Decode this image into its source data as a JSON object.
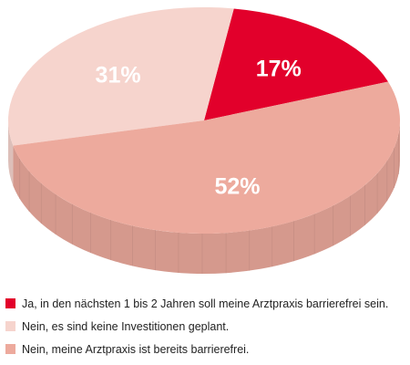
{
  "chart_data": {
    "type": "pie",
    "style": "3d",
    "slices": [
      {
        "label": "Ja, in den nächsten 1 bis 2 Jahren soll meine Arztpraxis barrierefrei sein.",
        "value": 17,
        "display": "17%",
        "color": "#e2002b"
      },
      {
        "label": "Nein, es sind keine Investitionen geplant.",
        "value": 31,
        "display": "31%",
        "color": "#f6d4cd"
      },
      {
        "label": "Nein, meine Arztpraxis ist bereits barrierefrei.",
        "value": 52,
        "display": "52%",
        "color": "#edaa9d"
      }
    ],
    "legend_position": "bottom"
  }
}
